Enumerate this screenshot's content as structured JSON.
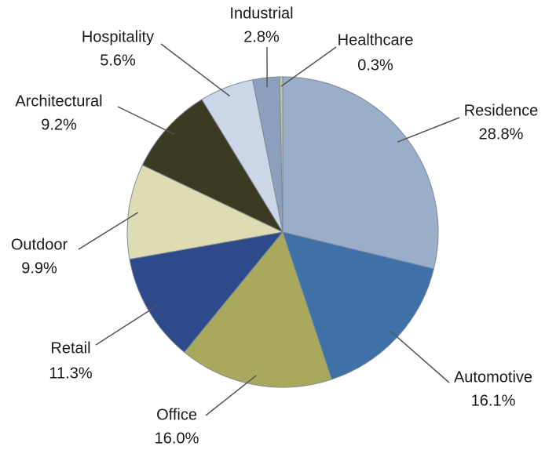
{
  "chart_data": {
    "type": "pie",
    "categories": [
      "Residence",
      "Automotive",
      "Office",
      "Retail",
      "Outdoor",
      "Architectural",
      "Hospitality",
      "Industrial",
      "Healthcare"
    ],
    "values": [
      28.8,
      16.1,
      16.0,
      11.3,
      9.9,
      9.2,
      5.6,
      2.8,
      0.3
    ],
    "value_labels": [
      "28.8%",
      "16.1%",
      "16.0%",
      "11.3%",
      "9.9%",
      "9.2%",
      "5.6%",
      "2.8%",
      "0.3%"
    ],
    "colors": [
      "#9aadc9",
      "#3f70a8",
      "#a9a95c",
      "#2f4a8a",
      "#dedcb2",
      "#3b3a22",
      "#cbd7e6",
      "#8c9fbd",
      "#c9c79e"
    ]
  }
}
